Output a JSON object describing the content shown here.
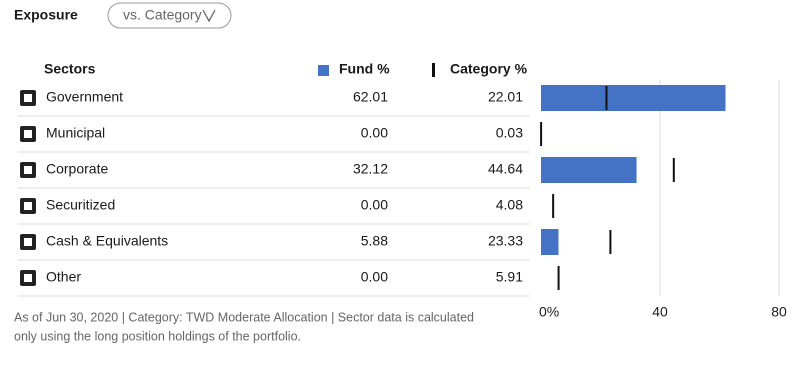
{
  "header": {
    "title": "Exposure",
    "dropdown": "vs. Category"
  },
  "chart_data": {
    "type": "bar",
    "orientation": "horizontal",
    "category_header": "Sectors",
    "categories": [
      "Government",
      "Municipal",
      "Corporate",
      "Securitized",
      "Cash & Equivalents",
      "Other"
    ],
    "series": [
      {
        "name": "Fund %",
        "color": "#4472c4",
        "values": [
          62.01,
          0,
          32.12,
          0,
          5.88,
          0
        ],
        "value_labels": [
          "62.01",
          "0.00",
          "32.12",
          "0.00",
          "5.88",
          "0.00"
        ]
      },
      {
        "name": "Category %",
        "color": "#111111",
        "values": [
          22.01,
          0.03,
          44.64,
          4.08,
          23.33,
          5.91
        ]
      }
    ],
    "xlim": [
      0,
      80
    ],
    "xticks": [
      {
        "value": 0,
        "label": "0%"
      },
      40,
      80
    ],
    "grid": true,
    "footnote": [
      "As of Jun 30, 2020 | Category: TWD Moderate Allocation | Sector data is calculated",
      "only using the long position holdings of the portfolio."
    ]
  }
}
